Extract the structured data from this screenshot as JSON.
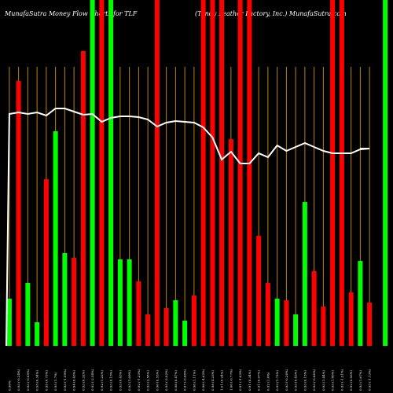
{
  "chart_data": {
    "type": "bar",
    "title_left": "MunafaSutra  Money Flow  Charts for TLF",
    "title_right": "(Tandy Leather Factory, Inc.) MunafaSutra.com",
    "xlabel": "",
    "ylabel": "",
    "ylim": [
      0,
      440
    ],
    "grid": "vertical",
    "colors": {
      "up": "#00ff00",
      "down": "#ff0000",
      "grid": "#b8860b",
      "line": "#ffffff",
      "background": "#000000"
    },
    "categories": [
      "0.96%",
      "0.93 (-0.24%)",
      "0.93 (-0.85%)",
      "0.95 (0.34%)",
      "0.95 (0.75%)",
      "0.95 (1.7%)",
      "0.93 (-1.59%)",
      "0.94 (0.43%)",
      "0.93 (0.32%)",
      "0.92 (-2.54%)",
      "0.92 (1.22%)",
      "0.93 (0.15%)",
      "0.93 (0.43%)",
      "0.93 (1.09%)",
      "0.92 (-1.23%)",
      "0.93 (2.58%)",
      "0.96 (0.55%)",
      "0.95 (-3.02%)",
      "0.98 (0.47%)",
      "0.97 (-0.66%)",
      "0.98 (1.11%)",
      "0.98 (-4.63%)",
      "0.98 (4.23%)",
      "1.01 (0.24%)",
      "1.00 (-0.77%)",
      "0.91 (-1.03%)",
      "0.91 (0.34%)",
      "0.91 (0.97%)",
      "0.92 (1.4%)",
      "0.93 (1.72%)",
      "0.93 (-0.26%)",
      "0.93 (0.43%)",
      "0.93 (0.15%)",
      "0.93 (-0.86%)",
      "0.93 (1.44%)",
      "0.93 (1.46%)",
      "0.92 (-1.21%)",
      "0.92 (0.93%)",
      "0.93 (1.67%)",
      "0.93 (-1.13%)"
    ],
    "values": [
      60,
      337,
      80,
      30,
      212,
      273,
      118,
      112,
      375,
      440,
      440,
      440,
      110,
      110,
      82,
      40,
      440,
      48,
      58,
      32,
      64,
      440,
      440,
      440,
      263,
      440,
      440,
      140,
      80,
      60,
      58,
      40,
      183,
      95,
      50,
      440,
      440,
      68,
      108,
      55
    ],
    "directions": [
      "up",
      "down",
      "up",
      "up",
      "down",
      "up",
      "up",
      "down",
      "down",
      "up",
      "down",
      "up",
      "up",
      "up",
      "down",
      "down",
      "down",
      "down",
      "up",
      "up",
      "down",
      "down",
      "down",
      "down",
      "down",
      "down",
      "down",
      "down",
      "down",
      "up",
      "down",
      "up",
      "up",
      "down",
      "down",
      "down",
      "down",
      "down",
      "up",
      "down"
    ],
    "line_values": [
      295,
      297,
      295,
      297,
      293,
      302,
      302,
      298,
      294,
      295,
      285,
      290,
      292,
      292,
      291,
      288,
      279,
      284,
      286,
      285,
      284,
      278,
      265,
      237,
      247,
      232,
      232,
      245,
      240,
      255,
      248,
      253,
      258,
      253,
      248,
      245,
      245,
      245,
      250,
      251
    ],
    "extra_bars": [
      {
        "index": 39,
        "direction": "up",
        "value": 440
      }
    ]
  }
}
